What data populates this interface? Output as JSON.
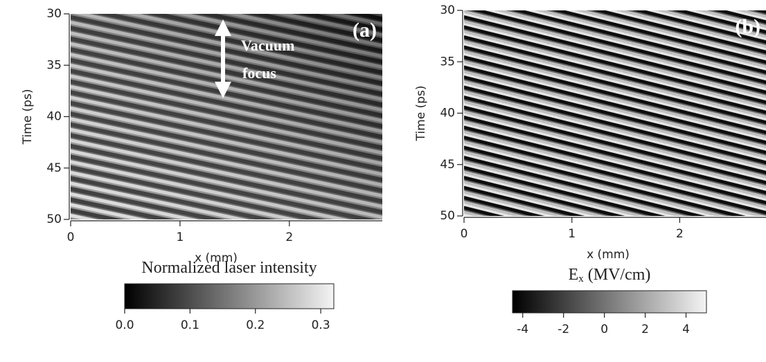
{
  "chart_data": [
    {
      "type": "heatmap",
      "panel_label": "(a)",
      "ylabel": "Time (ps)",
      "xlabel": "x (mm)",
      "xlim": [
        0,
        2.85
      ],
      "xticks": [
        0,
        1,
        2
      ],
      "ylim": [
        30,
        50
      ],
      "yticks": [
        30,
        35,
        40,
        45,
        50
      ],
      "annotations": [
        "Vacuum",
        "focus"
      ],
      "colorbar_title": "Normalized laser intensity",
      "colorbar_lim": [
        0,
        0.32
      ],
      "colorbar_ticks": [
        {
          "value": 0,
          "label": "0.0"
        },
        0.1,
        0.2,
        0.3
      ]
    },
    {
      "type": "heatmap",
      "panel_label": "(b)",
      "ylabel": "Time (ps)",
      "xlabel": "x (mm)",
      "xlim": [
        0,
        2.8
      ],
      "xticks": [
        0,
        1,
        2
      ],
      "ylim": [
        30,
        50
      ],
      "yticks": [
        30,
        35,
        40,
        45,
        50
      ],
      "colorbar_title": "E",
      "colorbar_title_sub": "x",
      "colorbar_title_unit": "(MV/cm)",
      "colorbar_lim": [
        -4.5,
        5
      ],
      "colorbar_ticks": [
        -4,
        -2,
        0,
        2,
        4
      ]
    }
  ]
}
